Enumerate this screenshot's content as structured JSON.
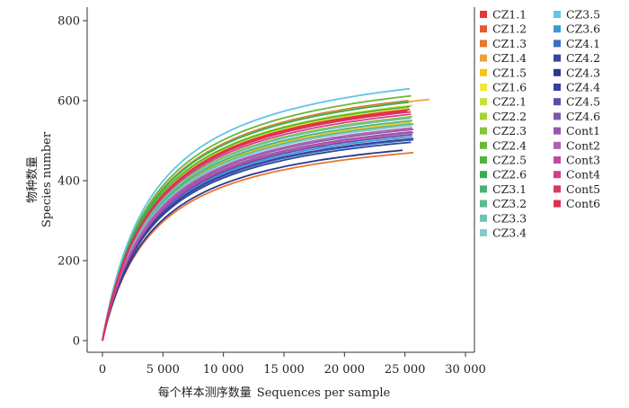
{
  "chart_data": {
    "type": "line",
    "xlabel_cn": "每个样本测序数量",
    "xlabel_en": "Sequences per sample",
    "ylabel_cn": "物种数量",
    "ylabel_en": "Species number",
    "xlim": [
      0,
      30000
    ],
    "ylim": [
      0,
      800
    ],
    "x_ticks": [
      0,
      5000,
      10000,
      15000,
      20000,
      25000,
      30000
    ],
    "x_tick_labels": [
      "0",
      "5 000",
      "10 000",
      "15 000",
      "20 000",
      "25 000",
      "30 000"
    ],
    "y_ticks": [
      0,
      200,
      400,
      600,
      800
    ],
    "y_tick_labels": [
      "0",
      "200",
      "400",
      "600",
      "800"
    ],
    "grid": false,
    "legend_placement": "right",
    "series": [
      {
        "name": "CZ1.1",
        "color": "#e03a3a",
        "x_end": 25400,
        "y_end": 578
      },
      {
        "name": "CZ1.2",
        "color": "#e65a32",
        "x_end": 25300,
        "y_end": 600
      },
      {
        "name": "CZ1.3",
        "color": "#e8772e",
        "x_end": 25700,
        "y_end": 470
      },
      {
        "name": "CZ1.4",
        "color": "#efa23a",
        "x_end": 27000,
        "y_end": 603
      },
      {
        "name": "CZ1.5",
        "color": "#f5c417",
        "x_end": 25500,
        "y_end": 545
      },
      {
        "name": "CZ1.6",
        "color": "#f1e83a",
        "x_end": 25300,
        "y_end": 582
      },
      {
        "name": "CZ2.1",
        "color": "#c9df3a",
        "x_end": 25600,
        "y_end": 588
      },
      {
        "name": "CZ2.2",
        "color": "#a6d232",
        "x_end": 25600,
        "y_end": 598
      },
      {
        "name": "CZ2.3",
        "color": "#86c43a",
        "x_end": 25600,
        "y_end": 560
      },
      {
        "name": "CZ2.4",
        "color": "#68b93a",
        "x_end": 25500,
        "y_end": 612
      },
      {
        "name": "CZ2.5",
        "color": "#4fb341",
        "x_end": 25400,
        "y_end": 585
      },
      {
        "name": "CZ2.6",
        "color": "#3aaa54",
        "x_end": 25300,
        "y_end": 596
      },
      {
        "name": "CZ3.1",
        "color": "#48b27a",
        "x_end": 25600,
        "y_end": 550
      },
      {
        "name": "CZ3.2",
        "color": "#5abb92",
        "x_end": 25700,
        "y_end": 542
      },
      {
        "name": "CZ3.3",
        "color": "#6cc3b3",
        "x_end": 25500,
        "y_end": 556
      },
      {
        "name": "CZ3.4",
        "color": "#84cbcf",
        "x_end": 25600,
        "y_end": 538
      },
      {
        "name": "CZ3.5",
        "color": "#62c4e6",
        "x_end": 25400,
        "y_end": 630
      },
      {
        "name": "CZ3.6",
        "color": "#3a9ad8",
        "x_end": 25600,
        "y_end": 510
      },
      {
        "name": "CZ4.1",
        "color": "#3c6fbd",
        "x_end": 25700,
        "y_end": 502
      },
      {
        "name": "CZ4.2",
        "color": "#34479a",
        "x_end": 25500,
        "y_end": 496
      },
      {
        "name": "CZ4.3",
        "color": "#283a8c",
        "x_end": 24800,
        "y_end": 476
      },
      {
        "name": "CZ4.4",
        "color": "#3b3da0",
        "x_end": 25700,
        "y_end": 505
      },
      {
        "name": "CZ4.5",
        "color": "#5e4da6",
        "x_end": 25600,
        "y_end": 515
      },
      {
        "name": "CZ4.6",
        "color": "#7d5aa8",
        "x_end": 25600,
        "y_end": 522
      },
      {
        "name": "Cont1",
        "color": "#9558ac",
        "x_end": 25700,
        "y_end": 528
      },
      {
        "name": "Cont2",
        "color": "#b160b4",
        "x_end": 25600,
        "y_end": 532
      },
      {
        "name": "Cont3",
        "color": "#c14aa8",
        "x_end": 25700,
        "y_end": 520
      },
      {
        "name": "Cont4",
        "color": "#d03f8e",
        "x_end": 25500,
        "y_end": 566
      },
      {
        "name": "Cont5",
        "color": "#d9376e",
        "x_end": 25500,
        "y_end": 572
      },
      {
        "name": "Cont6",
        "color": "#e0304a",
        "x_end": 25200,
        "y_end": 574
      }
    ]
  }
}
